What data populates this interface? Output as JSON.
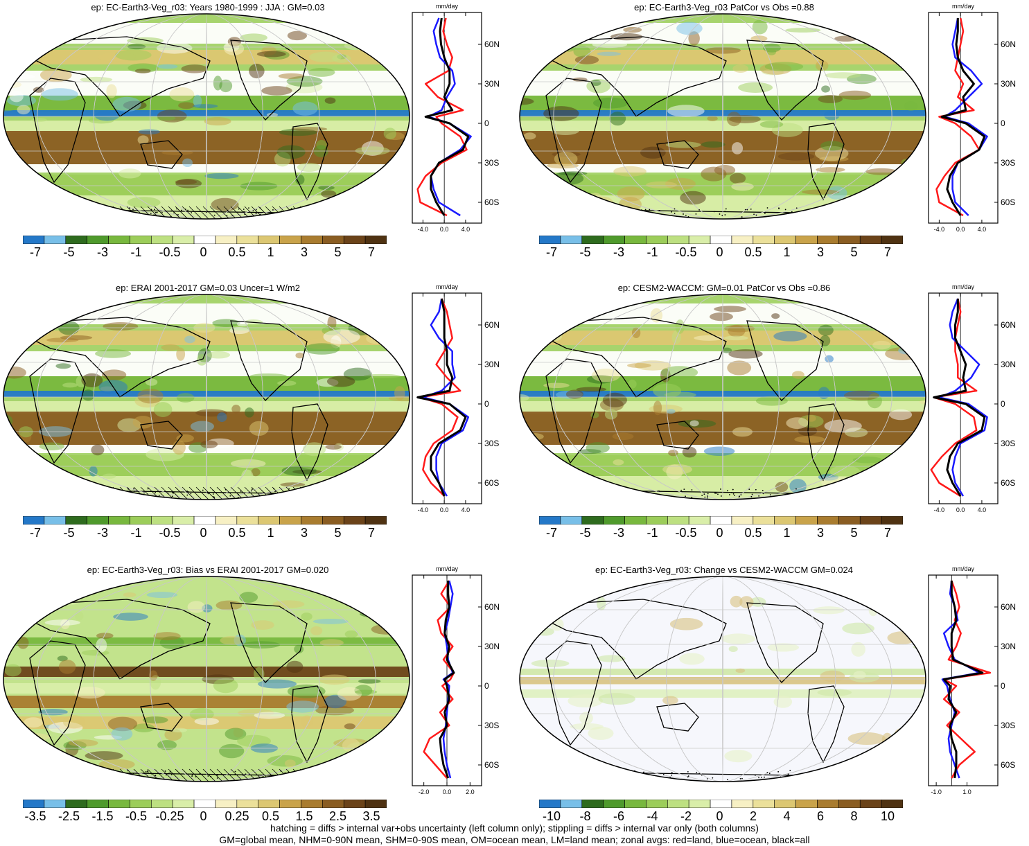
{
  "panels": [
    {
      "id": "p1",
      "title": "ep: EC-Earth3-Veg_r03: Years 1980-1999 : JJA : GM=0.03",
      "colorbar": {
        "labels": [
          "-7",
          "-5",
          "-3",
          "-1",
          "-0.5",
          "0",
          "0.5",
          "1",
          "3",
          "5",
          "7"
        ],
        "palette": "precip"
      },
      "profile": {
        "unit": "mm/day",
        "x_ticks": [
          "-4.0",
          "0.0",
          "4.0"
        ],
        "xlim": [
          -6,
          7
        ],
        "lat_labels": [
          "60N",
          "30N",
          "0",
          "30S",
          "60S"
        ],
        "hatching": true
      }
    },
    {
      "id": "p2",
      "title": "ep: EC-Earth3-Veg_r03 PatCor vs Obs =0.88",
      "colorbar": {
        "labels": [
          "-7",
          "-5",
          "-3",
          "-1",
          "-0.5",
          "0",
          "0.5",
          "1",
          "3",
          "5",
          "7"
        ],
        "palette": "precip"
      },
      "profile": {
        "unit": "mm/day",
        "x_ticks": [
          "-4.0",
          "0.0",
          "4.0"
        ],
        "xlim": [
          -6,
          7
        ],
        "lat_labels": [
          "60N",
          "30N",
          "0",
          "30S",
          "60S"
        ],
        "hatching": false
      }
    },
    {
      "id": "p3",
      "title": "ep: ERAI 2001-2017 GM=0.03 Uncer=1 W/m2",
      "colorbar": {
        "labels": [
          "-7",
          "-5",
          "-3",
          "-1",
          "-0.5",
          "0",
          "0.5",
          "1",
          "3",
          "5",
          "7"
        ],
        "palette": "precip"
      },
      "profile": {
        "unit": "mm/day",
        "x_ticks": [
          "-4.0",
          "0.0",
          "4.0"
        ],
        "xlim": [
          -6,
          7
        ],
        "lat_labels": [
          "60N",
          "30N",
          "0",
          "30S",
          "60S"
        ],
        "hatching": true
      }
    },
    {
      "id": "p4",
      "title": "ep: CESM2-WACCM: GM=0.01 PatCor vs Obs =0.86",
      "colorbar": {
        "labels": [
          "-7",
          "-5",
          "-3",
          "-1",
          "-0.5",
          "0",
          "0.5",
          "1",
          "3",
          "5",
          "7"
        ],
        "palette": "precip"
      },
      "profile": {
        "unit": "mm/day",
        "x_ticks": [
          "-4.0",
          "0.0",
          "4.0"
        ],
        "xlim": [
          -6,
          7
        ],
        "lat_labels": [
          "60N",
          "30N",
          "0",
          "30S",
          "60S"
        ],
        "hatching": false
      }
    },
    {
      "id": "p5",
      "title": "ep: EC-Earth3-Veg_r03: Bias vs ERAI 2001-2017 GM=0.020",
      "colorbar": {
        "labels": [
          "-3.5",
          "-2.5",
          "-1.5",
          "-0.5",
          "-0.25",
          "0",
          "0.25",
          "0.5",
          "1.5",
          "2.5",
          "3.5"
        ],
        "palette": "precip"
      },
      "profile": {
        "unit": "mm/day",
        "x_ticks": [
          "-2.0",
          "0.0",
          "2.0"
        ],
        "xlim": [
          -3,
          3
        ],
        "lat_labels": [
          "60N",
          "30N",
          "0",
          "30S",
          "60S"
        ],
        "hatching": true
      }
    },
    {
      "id": "p6",
      "title": "ep: EC-Earth3-Veg_r03: Change vs CESM2-WACCM GM=0.024",
      "colorbar": {
        "labels": [
          "-10",
          "-8",
          "-6",
          "-4",
          "-2",
          "0",
          "2",
          "4",
          "6",
          "8",
          "10"
        ],
        "palette": "precip"
      },
      "profile": {
        "unit": "mm/day",
        "x_ticks": [
          "-1.0",
          "1.0"
        ],
        "xlim": [
          -1.5,
          3
        ],
        "lat_labels": [
          "60N",
          "30N",
          "0",
          "30S",
          "60S"
        ],
        "hatching": false
      }
    }
  ],
  "footnote": {
    "line1": "hatching = diffs > internal var+obs uncertainty (left column only); stippling = diffs > internal var only (both columns)",
    "line2": "GM=global mean, NHM=0-90N mean, SHM=0-90S mean, OM=ocean mean, LM=land mean; zonal avgs: red=land, blue=ocean, black=all"
  },
  "colors": {
    "land_line": "#ff1a1a",
    "ocean_line": "#1a1aff",
    "all_line": "#000000",
    "palette_precip": [
      "#2478c8",
      "#78bfe8",
      "#2e6b1e",
      "#4f9a2c",
      "#78b83e",
      "#9ccd5a",
      "#bde081",
      "#d9eea9",
      "#ffffff",
      "#f7f0c4",
      "#ebe09a",
      "#dcc772",
      "#c9a34a",
      "#a97c2f",
      "#8a5d22",
      "#6b4319",
      "#4f3212"
    ]
  },
  "chart_data": [
    {
      "type": "line",
      "panel": "p1",
      "x_label": "mm/day",
      "y": [
        80,
        70,
        60,
        50,
        40,
        30,
        20,
        10,
        5,
        0,
        -10,
        -20,
        -30,
        -40,
        -50,
        -60,
        -70
      ],
      "series": [
        {
          "color": "red",
          "values": [
            0.3,
            -0.2,
            0.5,
            1.5,
            0.8,
            -3.5,
            -1.2,
            3.5,
            -1.5,
            -0.5,
            3.0,
            4.2,
            -0.5,
            -3.5,
            -5.0,
            -4.5,
            0.5
          ]
        },
        {
          "color": "blue",
          "values": [
            -1.0,
            -2.0,
            -1.5,
            -0.8,
            1.5,
            2.0,
            0.5,
            -0.5,
            -3.0,
            1.0,
            5.0,
            3.0,
            -1.0,
            -2.5,
            -2.0,
            -1.0,
            3.0
          ]
        },
        {
          "color": "black",
          "values": [
            -0.5,
            -0.8,
            -0.6,
            0.0,
            1.0,
            1.0,
            0.0,
            1.5,
            -3.5,
            1.0,
            4.5,
            3.5,
            -1.0,
            -2.5,
            -2.5,
            -1.5,
            0.0
          ]
        }
      ]
    },
    {
      "type": "line",
      "panel": "p2",
      "x_label": "mm/day",
      "y": [
        80,
        70,
        60,
        50,
        40,
        30,
        20,
        10,
        5,
        0,
        -10,
        -20,
        -30,
        -40,
        -50,
        -60,
        -70
      ],
      "series": [
        {
          "color": "red",
          "values": [
            0.0,
            0.5,
            0.0,
            -0.5,
            -1.0,
            0.5,
            -0.5,
            2.5,
            -4.0,
            -1.0,
            2.0,
            3.5,
            -1.0,
            -3.0,
            -4.5,
            -4.0,
            0.5
          ]
        },
        {
          "color": "blue",
          "values": [
            -0.5,
            -1.0,
            -1.5,
            -1.0,
            2.0,
            4.0,
            1.5,
            -1.0,
            -3.0,
            1.5,
            5.0,
            3.5,
            -0.5,
            -1.5,
            -1.5,
            -1.0,
            1.5
          ]
        },
        {
          "color": "black",
          "values": [
            -0.5,
            -0.5,
            -0.8,
            -0.5,
            0.5,
            2.5,
            0.5,
            1.0,
            -3.5,
            1.0,
            4.5,
            3.5,
            -0.5,
            -2.0,
            -2.5,
            -1.5,
            0.0
          ]
        }
      ]
    },
    {
      "type": "line",
      "panel": "p3",
      "x_label": "mm/day",
      "y": [
        80,
        70,
        60,
        50,
        40,
        30,
        20,
        10,
        5,
        0,
        -10,
        -20,
        -30,
        -40,
        -50,
        -60,
        -70
      ],
      "series": [
        {
          "color": "red",
          "values": [
            -0.5,
            0.5,
            1.0,
            1.5,
            0.0,
            -1.5,
            0.5,
            3.0,
            -4.5,
            -0.5,
            2.5,
            1.5,
            -2.0,
            -3.5,
            -4.0,
            -2.5,
            0.0
          ]
        },
        {
          "color": "blue",
          "values": [
            -0.5,
            -1.0,
            -2.5,
            -1.0,
            1.5,
            1.5,
            2.0,
            -0.5,
            -4.0,
            1.0,
            4.5,
            3.5,
            -0.5,
            -1.5,
            -1.5,
            -1.0,
            0.5
          ]
        },
        {
          "color": "black",
          "values": [
            -0.5,
            0.0,
            0.0,
            0.0,
            0.5,
            0.5,
            1.5,
            1.0,
            -5.0,
            1.0,
            4.0,
            3.0,
            -1.0,
            -2.5,
            -2.5,
            -1.0,
            0.0
          ]
        }
      ]
    },
    {
      "type": "line",
      "panel": "p4",
      "x_label": "mm/day",
      "y": [
        80,
        70,
        60,
        50,
        40,
        30,
        20,
        10,
        5,
        0,
        -10,
        -20,
        -30,
        -40,
        -50,
        -60,
        -70
      ],
      "series": [
        {
          "color": "red",
          "values": [
            -0.5,
            0.0,
            -0.5,
            -1.0,
            -1.0,
            -0.5,
            -0.5,
            3.0,
            -5.0,
            -1.0,
            2.5,
            3.0,
            -1.0,
            -3.5,
            -5.5,
            -4.0,
            0.0
          ]
        },
        {
          "color": "blue",
          "values": [
            -0.5,
            -1.5,
            -2.0,
            -1.5,
            1.0,
            3.5,
            2.0,
            -1.0,
            -4.0,
            1.5,
            5.0,
            4.5,
            0.0,
            -1.0,
            -1.5,
            -1.0,
            0.5
          ]
        },
        {
          "color": "black",
          "values": [
            -0.5,
            -0.5,
            -1.0,
            -1.0,
            0.0,
            1.0,
            0.5,
            1.0,
            -5.0,
            1.0,
            4.5,
            4.0,
            -0.5,
            -2.0,
            -2.5,
            -1.5,
            0.0
          ]
        }
      ]
    },
    {
      "type": "line",
      "panel": "p5",
      "x_label": "mm/day",
      "y": [
        80,
        70,
        60,
        50,
        40,
        30,
        20,
        10,
        5,
        0,
        -10,
        -20,
        -30,
        -40,
        -50,
        -60,
        -70
      ],
      "series": [
        {
          "color": "red",
          "values": [
            0.2,
            -0.5,
            0.3,
            -0.8,
            -0.5,
            0.5,
            -0.3,
            0.6,
            0.3,
            -0.4,
            0.5,
            -0.6,
            0.2,
            -1.5,
            -2.0,
            -1.0,
            0.0
          ]
        },
        {
          "color": "blue",
          "values": [
            0.2,
            0.5,
            0.3,
            0.1,
            -0.2,
            0.0,
            0.1,
            0.5,
            -0.3,
            0.2,
            0.1,
            0.0,
            -0.1,
            -0.3,
            -0.2,
            0.0,
            0.3
          ]
        },
        {
          "color": "black",
          "values": [
            0.1,
            0.1,
            0.2,
            -0.1,
            -0.2,
            0.2,
            0.0,
            0.6,
            -0.2,
            0.0,
            0.2,
            -0.2,
            0.0,
            -0.6,
            -0.5,
            -0.3,
            0.1
          ]
        }
      ]
    },
    {
      "type": "line",
      "panel": "p6",
      "x_label": "mm/day",
      "y": [
        80,
        70,
        60,
        50,
        40,
        30,
        20,
        10,
        5,
        0,
        -10,
        -20,
        -30,
        -40,
        -50,
        -60,
        -70
      ],
      "series": [
        {
          "color": "red",
          "values": [
            0.0,
            0.3,
            0.5,
            0.2,
            0.6,
            0.3,
            -0.2,
            2.5,
            -0.5,
            0.3,
            -0.5,
            0.5,
            -0.3,
            0.6,
            1.5,
            0.5,
            0.0
          ]
        },
        {
          "color": "blue",
          "values": [
            0.0,
            -0.1,
            0.2,
            0.4,
            -0.5,
            -0.2,
            0.2,
            1.8,
            -0.6,
            -0.3,
            -0.1,
            0.2,
            0.0,
            -0.2,
            -0.1,
            0.2,
            0.5
          ]
        },
        {
          "color": "black",
          "values": [
            0.0,
            0.0,
            0.2,
            0.3,
            0.0,
            0.0,
            0.1,
            2.0,
            -0.5,
            -0.1,
            -0.2,
            0.3,
            -0.1,
            0.0,
            0.3,
            0.3,
            0.2
          ]
        }
      ]
    }
  ]
}
